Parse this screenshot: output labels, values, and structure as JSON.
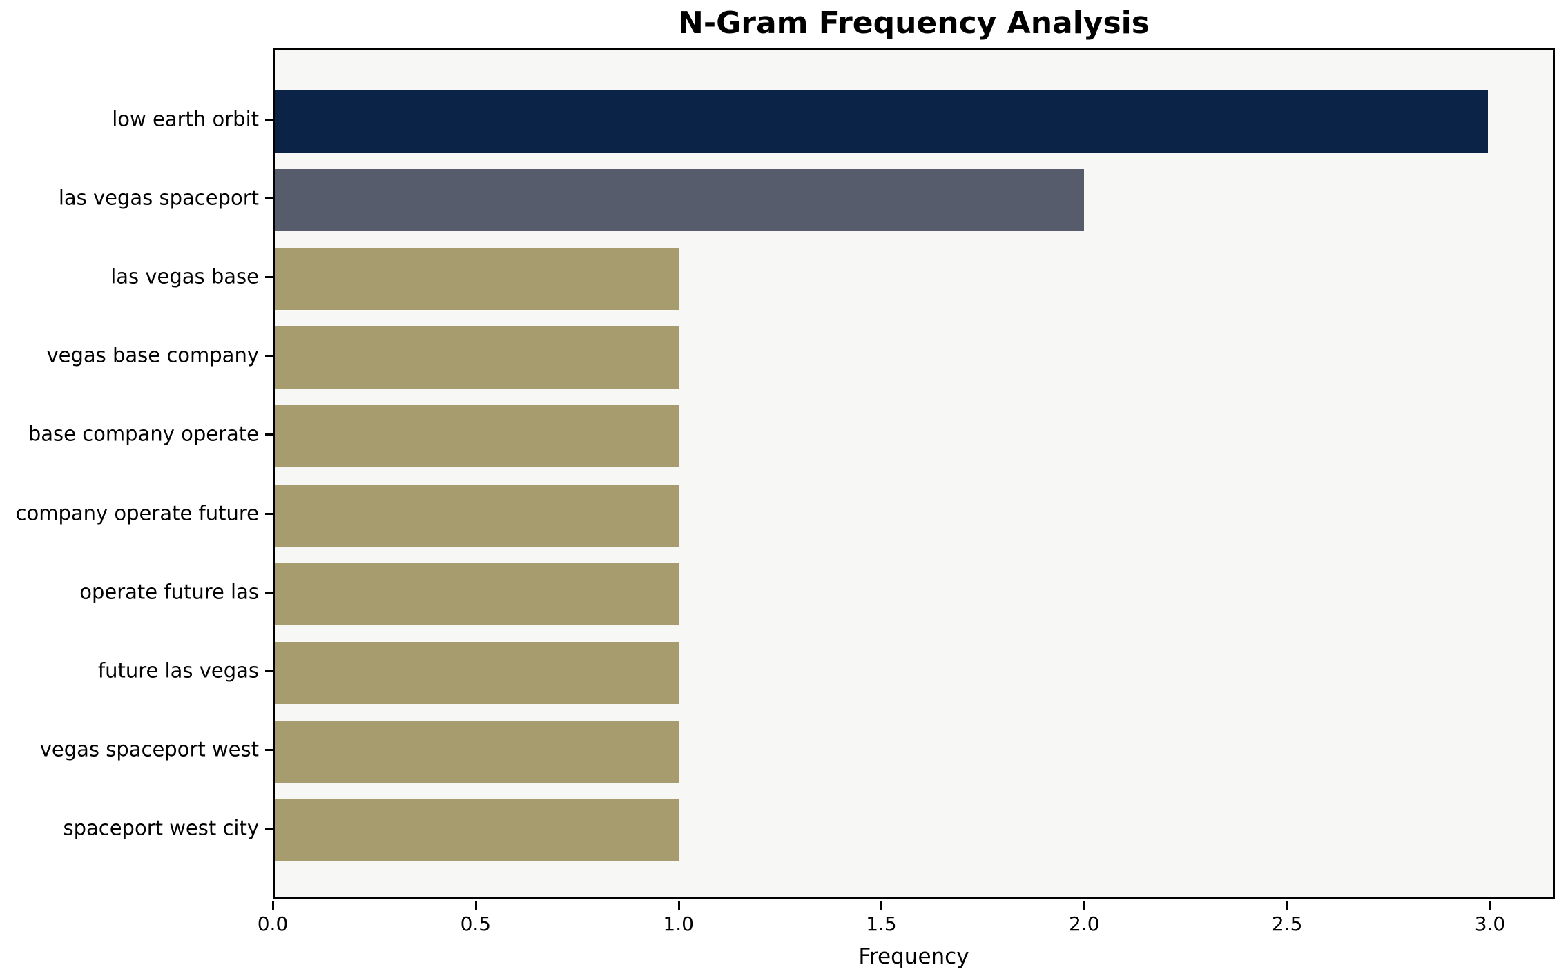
{
  "chart_data": {
    "type": "bar",
    "orientation": "horizontal",
    "title": "N-Gram Frequency Analysis",
    "xlabel": "Frequency",
    "ylabel": "",
    "categories": [
      "low earth orbit",
      "las vegas spaceport",
      "las vegas base",
      "vegas base company",
      "base company operate",
      "company operate future",
      "operate future las",
      "future las vegas",
      "vegas spaceport west",
      "spaceport west city"
    ],
    "values": [
      3,
      2,
      1,
      1,
      1,
      1,
      1,
      1,
      1,
      1
    ],
    "bar_colors": [
      "#0a2347",
      "#565c6b",
      "#a69c6e",
      "#a69c6e",
      "#a69c6e",
      "#a69c6e",
      "#a69c6e",
      "#a69c6e",
      "#a69c6e",
      "#a69c6e"
    ],
    "x_ticks": [
      "0.0",
      "0.5",
      "1.0",
      "1.5",
      "2.0",
      "2.5",
      "3.0"
    ],
    "x_tick_values": [
      0,
      0.5,
      1,
      1.5,
      2,
      2.5,
      3
    ],
    "xlim": [
      0,
      3.16
    ],
    "grid": false,
    "legend": null,
    "plot_background": "#f7f7f6",
    "axis_color": "#000000",
    "text_color": "#000000"
  }
}
